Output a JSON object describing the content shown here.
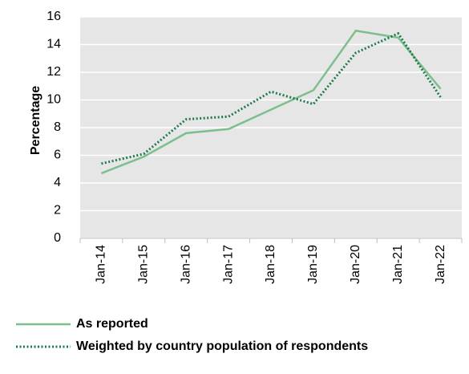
{
  "chart_data": {
    "type": "line",
    "y_label": "Percentage",
    "categories": [
      "Jan-14",
      "Jan-15",
      "Jan-16",
      "Jan-17",
      "Jan-18",
      "Jan-19",
      "Jan-20",
      "Jan-21",
      "Jan-22"
    ],
    "series": [
      {
        "name": "As reported",
        "color": "#7cbf8e",
        "style": "solid",
        "values": [
          4.7,
          5.9,
          7.6,
          7.9,
          9.3,
          10.7,
          15.0,
          14.5,
          10.8
        ]
      },
      {
        "name": "Weighted by country population of respondents",
        "color": "#1f7a4c",
        "style": "dotted",
        "values": [
          5.4,
          6.1,
          8.6,
          8.8,
          10.6,
          9.7,
          13.4,
          14.8,
          10.2
        ]
      }
    ],
    "ylim": [
      0,
      16
    ],
    "yticks": [
      0,
      2,
      4,
      6,
      8,
      10,
      12,
      14,
      16
    ],
    "grid": true,
    "legend": "bottom"
  }
}
